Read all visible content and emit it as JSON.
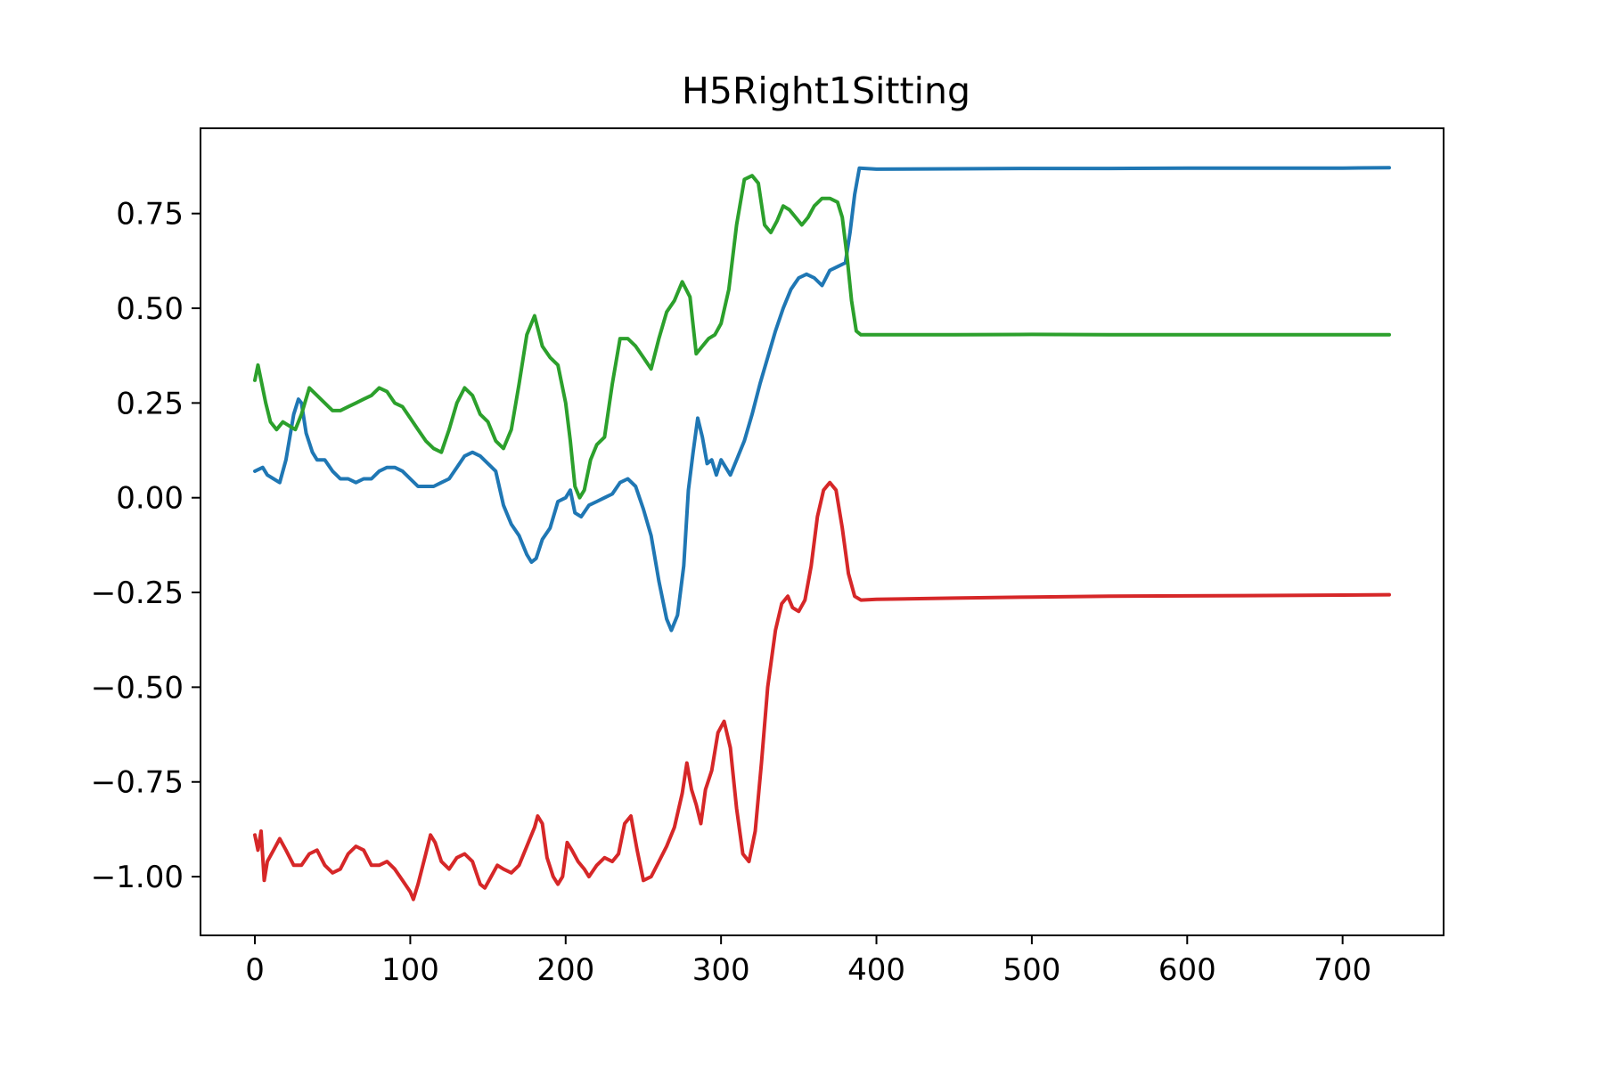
{
  "chart_data": {
    "type": "line",
    "title": "H5Right1Sitting",
    "xlabel": "",
    "ylabel": "",
    "xlim": [
      -35,
      765
    ],
    "ylim": [
      -1.155,
      0.975
    ],
    "xticks": [
      0,
      100,
      200,
      300,
      400,
      500,
      600,
      700
    ],
    "xtick_labels": [
      "0",
      "100",
      "200",
      "300",
      "400",
      "500",
      "600",
      "700"
    ],
    "yticks": [
      -1.0,
      -0.75,
      -0.5,
      -0.25,
      0.0,
      0.25,
      0.5,
      0.75
    ],
    "ytick_labels": [
      "−1.00",
      "−0.75",
      "−0.50",
      "−0.25",
      "0.00",
      "0.25",
      "0.50",
      "0.75"
    ],
    "grid": false,
    "series": [
      {
        "color": "#1f77b4",
        "points": [
          [
            0,
            0.07
          ],
          [
            5,
            0.08
          ],
          [
            8,
            0.06
          ],
          [
            12,
            0.05
          ],
          [
            16,
            0.04
          ],
          [
            20,
            0.1
          ],
          [
            25,
            0.22
          ],
          [
            28,
            0.26
          ],
          [
            30,
            0.25
          ],
          [
            33,
            0.17
          ],
          [
            37,
            0.12
          ],
          [
            40,
            0.1
          ],
          [
            45,
            0.1
          ],
          [
            50,
            0.07
          ],
          [
            55,
            0.05
          ],
          [
            60,
            0.05
          ],
          [
            65,
            0.04
          ],
          [
            70,
            0.05
          ],
          [
            75,
            0.05
          ],
          [
            80,
            0.07
          ],
          [
            85,
            0.08
          ],
          [
            90,
            0.08
          ],
          [
            95,
            0.07
          ],
          [
            100,
            0.05
          ],
          [
            105,
            0.03
          ],
          [
            110,
            0.03
          ],
          [
            115,
            0.03
          ],
          [
            120,
            0.04
          ],
          [
            125,
            0.05
          ],
          [
            130,
            0.08
          ],
          [
            135,
            0.11
          ],
          [
            140,
            0.12
          ],
          [
            145,
            0.11
          ],
          [
            150,
            0.09
          ],
          [
            155,
            0.07
          ],
          [
            160,
            -0.02
          ],
          [
            165,
            -0.07
          ],
          [
            170,
            -0.1
          ],
          [
            175,
            -0.15
          ],
          [
            178,
            -0.17
          ],
          [
            181,
            -0.16
          ],
          [
            185,
            -0.11
          ],
          [
            190,
            -0.08
          ],
          [
            195,
            -0.01
          ],
          [
            200,
            0.0
          ],
          [
            203,
            0.02
          ],
          [
            206,
            -0.04
          ],
          [
            210,
            -0.05
          ],
          [
            215,
            -0.02
          ],
          [
            220,
            -0.01
          ],
          [
            225,
            0.0
          ],
          [
            230,
            0.01
          ],
          [
            235,
            0.04
          ],
          [
            240,
            0.05
          ],
          [
            245,
            0.03
          ],
          [
            250,
            -0.03
          ],
          [
            255,
            -0.1
          ],
          [
            260,
            -0.22
          ],
          [
            265,
            -0.32
          ],
          [
            268,
            -0.35
          ],
          [
            272,
            -0.31
          ],
          [
            276,
            -0.18
          ],
          [
            279,
            0.02
          ],
          [
            282,
            0.12
          ],
          [
            285,
            0.21
          ],
          [
            288,
            0.16
          ],
          [
            291,
            0.09
          ],
          [
            294,
            0.1
          ],
          [
            297,
            0.06
          ],
          [
            300,
            0.1
          ],
          [
            303,
            0.08
          ],
          [
            306,
            0.06
          ],
          [
            310,
            0.1
          ],
          [
            315,
            0.15
          ],
          [
            320,
            0.22
          ],
          [
            325,
            0.3
          ],
          [
            330,
            0.37
          ],
          [
            335,
            0.44
          ],
          [
            340,
            0.5
          ],
          [
            345,
            0.55
          ],
          [
            350,
            0.58
          ],
          [
            355,
            0.59
          ],
          [
            360,
            0.58
          ],
          [
            365,
            0.56
          ],
          [
            370,
            0.6
          ],
          [
            375,
            0.61
          ],
          [
            380,
            0.62
          ],
          [
            383,
            0.7
          ],
          [
            386,
            0.8
          ],
          [
            389,
            0.87
          ],
          [
            400,
            0.867
          ],
          [
            450,
            0.868
          ],
          [
            500,
            0.869
          ],
          [
            550,
            0.869
          ],
          [
            600,
            0.87
          ],
          [
            650,
            0.87
          ],
          [
            700,
            0.87
          ],
          [
            730,
            0.871
          ]
        ]
      },
      {
        "color": "#2ca02c",
        "points": [
          [
            0,
            0.31
          ],
          [
            2,
            0.35
          ],
          [
            4,
            0.31
          ],
          [
            7,
            0.25
          ],
          [
            10,
            0.2
          ],
          [
            14,
            0.18
          ],
          [
            18,
            0.2
          ],
          [
            22,
            0.19
          ],
          [
            26,
            0.18
          ],
          [
            30,
            0.22
          ],
          [
            35,
            0.29
          ],
          [
            40,
            0.27
          ],
          [
            45,
            0.25
          ],
          [
            50,
            0.23
          ],
          [
            55,
            0.23
          ],
          [
            60,
            0.24
          ],
          [
            65,
            0.25
          ],
          [
            70,
            0.26
          ],
          [
            75,
            0.27
          ],
          [
            80,
            0.29
          ],
          [
            85,
            0.28
          ],
          [
            90,
            0.25
          ],
          [
            95,
            0.24
          ],
          [
            100,
            0.21
          ],
          [
            105,
            0.18
          ],
          [
            110,
            0.15
          ],
          [
            115,
            0.13
          ],
          [
            120,
            0.12
          ],
          [
            125,
            0.18
          ],
          [
            130,
            0.25
          ],
          [
            135,
            0.29
          ],
          [
            140,
            0.27
          ],
          [
            145,
            0.22
          ],
          [
            150,
            0.2
          ],
          [
            155,
            0.15
          ],
          [
            160,
            0.13
          ],
          [
            165,
            0.18
          ],
          [
            170,
            0.3
          ],
          [
            175,
            0.43
          ],
          [
            180,
            0.48
          ],
          [
            185,
            0.4
          ],
          [
            190,
            0.37
          ],
          [
            195,
            0.35
          ],
          [
            200,
            0.25
          ],
          [
            203,
            0.15
          ],
          [
            206,
            0.03
          ],
          [
            209,
            0.0
          ],
          [
            212,
            0.02
          ],
          [
            216,
            0.1
          ],
          [
            220,
            0.14
          ],
          [
            225,
            0.16
          ],
          [
            230,
            0.3
          ],
          [
            235,
            0.42
          ],
          [
            240,
            0.42
          ],
          [
            245,
            0.4
          ],
          [
            250,
            0.37
          ],
          [
            255,
            0.34
          ],
          [
            260,
            0.42
          ],
          [
            265,
            0.49
          ],
          [
            270,
            0.52
          ],
          [
            275,
            0.57
          ],
          [
            280,
            0.53
          ],
          [
            284,
            0.38
          ],
          [
            288,
            0.4
          ],
          [
            292,
            0.42
          ],
          [
            296,
            0.43
          ],
          [
            300,
            0.46
          ],
          [
            305,
            0.55
          ],
          [
            310,
            0.72
          ],
          [
            315,
            0.84
          ],
          [
            320,
            0.85
          ],
          [
            324,
            0.83
          ],
          [
            328,
            0.72
          ],
          [
            332,
            0.7
          ],
          [
            336,
            0.73
          ],
          [
            340,
            0.77
          ],
          [
            344,
            0.76
          ],
          [
            348,
            0.74
          ],
          [
            352,
            0.72
          ],
          [
            356,
            0.74
          ],
          [
            360,
            0.77
          ],
          [
            365,
            0.79
          ],
          [
            370,
            0.79
          ],
          [
            375,
            0.78
          ],
          [
            378,
            0.74
          ],
          [
            381,
            0.64
          ],
          [
            384,
            0.52
          ],
          [
            387,
            0.44
          ],
          [
            390,
            0.43
          ],
          [
            400,
            0.43
          ],
          [
            450,
            0.43
          ],
          [
            500,
            0.431
          ],
          [
            550,
            0.43
          ],
          [
            600,
            0.43
          ],
          [
            650,
            0.43
          ],
          [
            700,
            0.43
          ],
          [
            730,
            0.43
          ]
        ]
      },
      {
        "color": "#d62728",
        "points": [
          [
            0,
            -0.89
          ],
          [
            2,
            -0.93
          ],
          [
            4,
            -0.88
          ],
          [
            6,
            -1.01
          ],
          [
            8,
            -0.96
          ],
          [
            12,
            -0.93
          ],
          [
            16,
            -0.9
          ],
          [
            20,
            -0.93
          ],
          [
            25,
            -0.97
          ],
          [
            30,
            -0.97
          ],
          [
            35,
            -0.94
          ],
          [
            40,
            -0.93
          ],
          [
            45,
            -0.97
          ],
          [
            50,
            -0.99
          ],
          [
            55,
            -0.98
          ],
          [
            60,
            -0.94
          ],
          [
            65,
            -0.92
          ],
          [
            70,
            -0.93
          ],
          [
            75,
            -0.97
          ],
          [
            80,
            -0.97
          ],
          [
            85,
            -0.96
          ],
          [
            90,
            -0.98
          ],
          [
            95,
            -1.01
          ],
          [
            100,
            -1.04
          ],
          [
            102,
            -1.06
          ],
          [
            105,
            -1.02
          ],
          [
            110,
            -0.94
          ],
          [
            113,
            -0.89
          ],
          [
            116,
            -0.91
          ],
          [
            120,
            -0.96
          ],
          [
            125,
            -0.98
          ],
          [
            130,
            -0.95
          ],
          [
            135,
            -0.94
          ],
          [
            140,
            -0.96
          ],
          [
            145,
            -1.02
          ],
          [
            148,
            -1.03
          ],
          [
            152,
            -1.0
          ],
          [
            156,
            -0.97
          ],
          [
            160,
            -0.98
          ],
          [
            165,
            -0.99
          ],
          [
            170,
            -0.97
          ],
          [
            175,
            -0.92
          ],
          [
            178,
            -0.89
          ],
          [
            180,
            -0.87
          ],
          [
            182,
            -0.84
          ],
          [
            185,
            -0.86
          ],
          [
            188,
            -0.95
          ],
          [
            192,
            -1.0
          ],
          [
            195,
            -1.02
          ],
          [
            198,
            -1.0
          ],
          [
            201,
            -0.91
          ],
          [
            204,
            -0.93
          ],
          [
            208,
            -0.96
          ],
          [
            212,
            -0.98
          ],
          [
            215,
            -1.0
          ],
          [
            220,
            -0.97
          ],
          [
            225,
            -0.95
          ],
          [
            230,
            -0.96
          ],
          [
            234,
            -0.94
          ],
          [
            238,
            -0.86
          ],
          [
            242,
            -0.84
          ],
          [
            246,
            -0.93
          ],
          [
            250,
            -1.01
          ],
          [
            255,
            -1.0
          ],
          [
            260,
            -0.96
          ],
          [
            265,
            -0.92
          ],
          [
            270,
            -0.87
          ],
          [
            275,
            -0.78
          ],
          [
            278,
            -0.7
          ],
          [
            281,
            -0.77
          ],
          [
            284,
            -0.81
          ],
          [
            287,
            -0.86
          ],
          [
            290,
            -0.77
          ],
          [
            294,
            -0.72
          ],
          [
            298,
            -0.62
          ],
          [
            302,
            -0.59
          ],
          [
            306,
            -0.66
          ],
          [
            310,
            -0.82
          ],
          [
            314,
            -0.94
          ],
          [
            318,
            -0.96
          ],
          [
            322,
            -0.88
          ],
          [
            326,
            -0.7
          ],
          [
            330,
            -0.5
          ],
          [
            335,
            -0.35
          ],
          [
            339,
            -0.28
          ],
          [
            343,
            -0.26
          ],
          [
            346,
            -0.29
          ],
          [
            350,
            -0.3
          ],
          [
            354,
            -0.27
          ],
          [
            358,
            -0.18
          ],
          [
            362,
            -0.05
          ],
          [
            366,
            0.02
          ],
          [
            370,
            0.04
          ],
          [
            374,
            0.02
          ],
          [
            378,
            -0.08
          ],
          [
            382,
            -0.2
          ],
          [
            386,
            -0.26
          ],
          [
            390,
            -0.27
          ],
          [
            400,
            -0.268
          ],
          [
            450,
            -0.265
          ],
          [
            500,
            -0.262
          ],
          [
            550,
            -0.26
          ],
          [
            600,
            -0.259
          ],
          [
            650,
            -0.258
          ],
          [
            700,
            -0.257
          ],
          [
            730,
            -0.256
          ]
        ]
      }
    ]
  }
}
